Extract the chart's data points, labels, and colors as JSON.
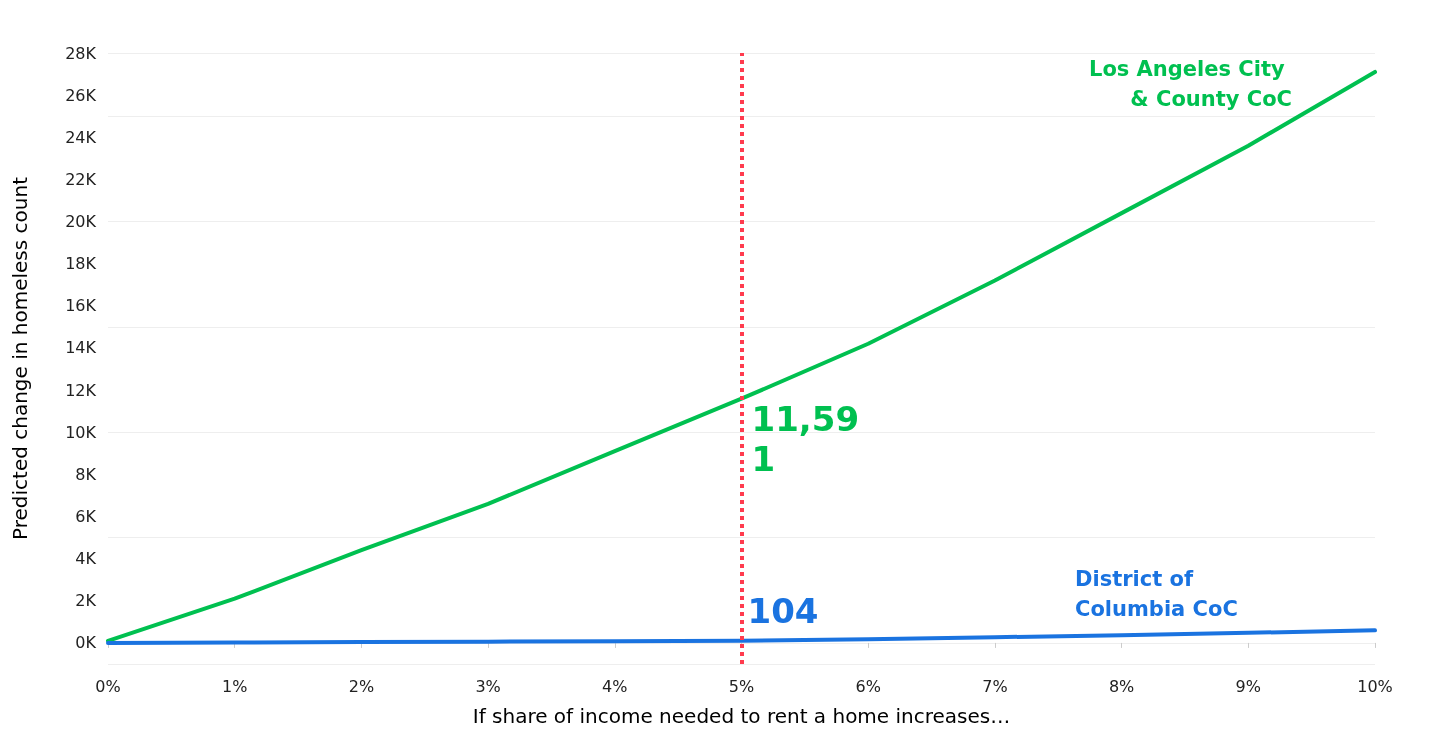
{
  "chart_data": {
    "type": "line",
    "xlabel": "If share of income needed to rent a home increases…",
    "ylabel": "Predicted change in homeless count",
    "x": [
      0,
      1,
      2,
      3,
      4,
      5,
      6,
      7,
      8,
      9,
      10
    ],
    "series": [
      {
        "name": "Los Angeles City & County CoC",
        "color": "#00c050",
        "values": [
          100,
          2100,
          4400,
          6600,
          9100,
          11591,
          14200,
          17200,
          20400,
          23600,
          27100
        ],
        "value_labels": [
          null,
          null,
          null,
          null,
          null,
          "11,591",
          null,
          null,
          null,
          null,
          null
        ]
      },
      {
        "name": "District of Columbia CoC",
        "color": "#1a73e0",
        "values": [
          0,
          20,
          40,
          60,
          80,
          104,
          180,
          270,
          370,
          480,
          600
        ],
        "value_labels": [
          null,
          null,
          null,
          null,
          null,
          "104",
          null,
          null,
          null,
          null,
          null
        ]
      }
    ],
    "xlim": [
      0,
      10
    ],
    "xticks": [
      {
        "value": 0,
        "label": "0%"
      },
      {
        "value": 1,
        "label": "1%"
      },
      {
        "value": 2,
        "label": "2%"
      },
      {
        "value": 3,
        "label": "3%"
      },
      {
        "value": 4,
        "label": "4%"
      },
      {
        "value": 5,
        "label": "5%"
      },
      {
        "value": 6,
        "label": "6%"
      },
      {
        "value": 7,
        "label": "7%"
      },
      {
        "value": 8,
        "label": "8%"
      },
      {
        "value": 9,
        "label": "9%"
      },
      {
        "value": 10,
        "label": "10%"
      }
    ],
    "ylim": [
      -1000,
      28000
    ],
    "yticks": [
      {
        "value": 0,
        "label": "0K"
      },
      {
        "value": 2000,
        "label": "2K"
      },
      {
        "value": 4000,
        "label": "4K"
      },
      {
        "value": 6000,
        "label": "6K"
      },
      {
        "value": 8000,
        "label": "8K"
      },
      {
        "value": 10000,
        "label": "10K"
      },
      {
        "value": 12000,
        "label": "12K"
      },
      {
        "value": 14000,
        "label": "14K"
      },
      {
        "value": 16000,
        "label": "16K"
      },
      {
        "value": 18000,
        "label": "18K"
      },
      {
        "value": 20000,
        "label": "20K"
      },
      {
        "value": 22000,
        "label": "22K"
      },
      {
        "value": 24000,
        "label": "24K"
      },
      {
        "value": 26000,
        "label": "26K"
      },
      {
        "value": 28000,
        "label": "28K"
      }
    ],
    "ref_lines": [
      {
        "axis": "x",
        "value": 5,
        "label": null,
        "color": "#ff3b4e",
        "line_style": "dotted"
      }
    ],
    "grid": "y",
    "marker": "none",
    "line_style": "solid"
  }
}
